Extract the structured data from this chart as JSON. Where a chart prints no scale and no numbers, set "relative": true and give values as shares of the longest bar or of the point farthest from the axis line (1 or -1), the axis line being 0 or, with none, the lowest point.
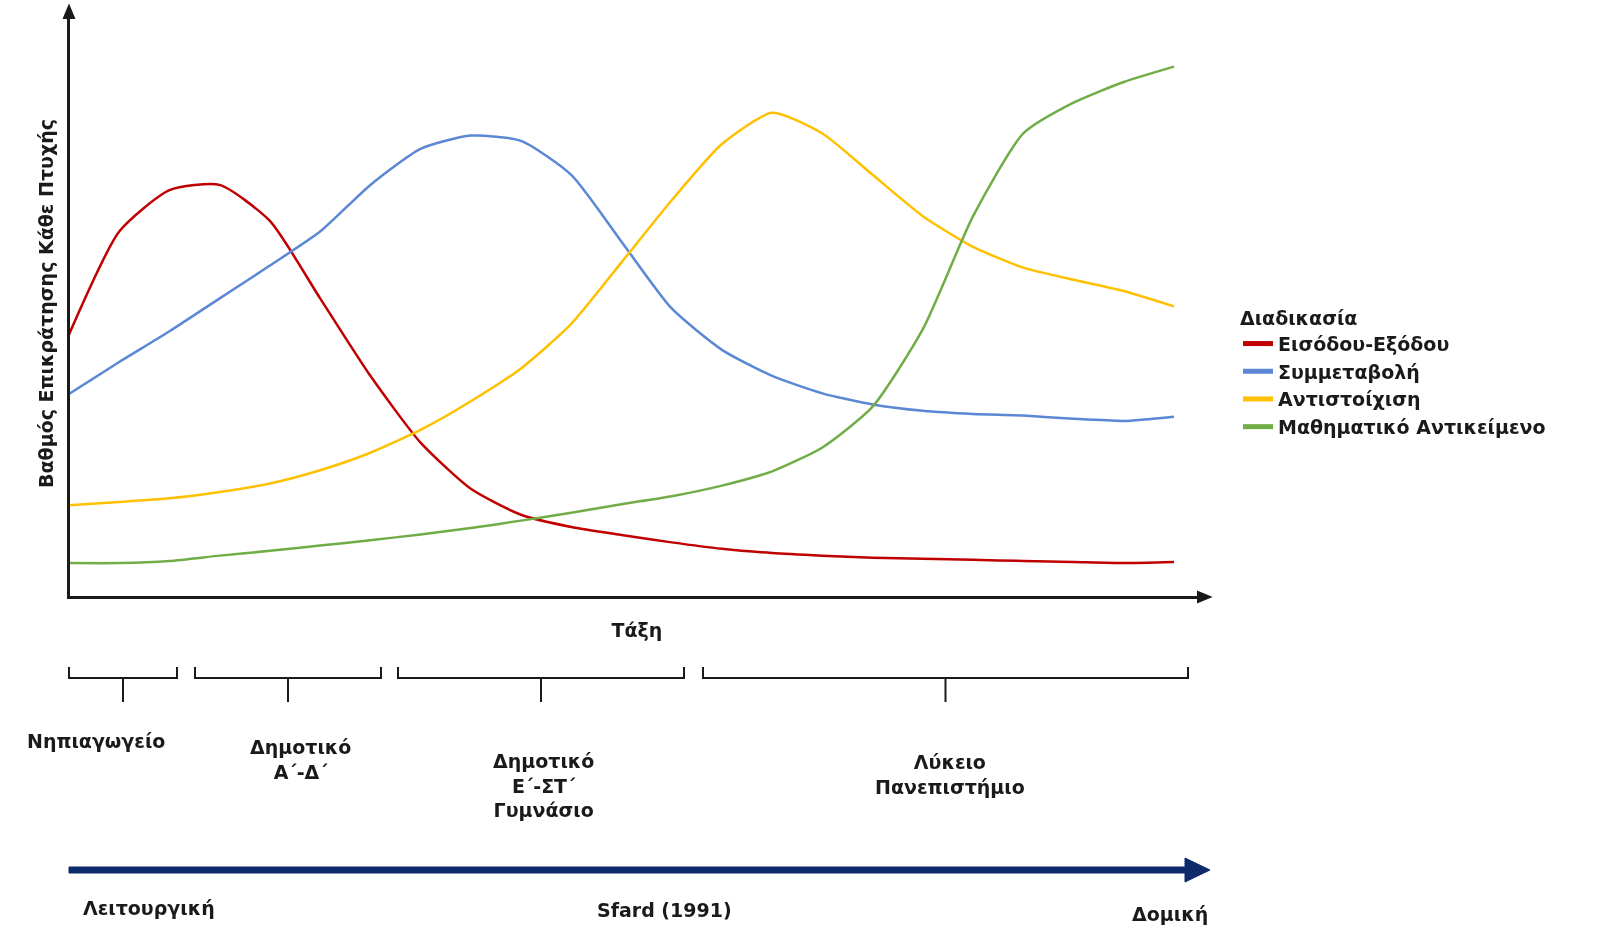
{
  "chart_data": {
    "type": "line",
    "relative": true,
    "xlabel": "Τάξη",
    "ylabel": "Βαθμός Επικράτησης Κάθε Πτυχής",
    "legend_title": "Διαδικασία",
    "legend": "right",
    "marker": "none",
    "line_style": "solid",
    "categories": [
      null,
      null,
      null,
      null,
      null,
      null,
      null,
      null,
      null,
      null,
      null,
      null,
      null,
      null,
      null,
      null,
      null,
      null,
      null,
      null,
      null,
      null,
      null
    ],
    "series": [
      {
        "name": "Εισόδου-Εξόδου",
        "color": "#c00000",
        "values": [
          0.495,
          0.689,
          0.767,
          0.777,
          0.709,
          0.563,
          0.417,
          0.291,
          0.204,
          0.155,
          0.132,
          0.117,
          0.103,
          0.091,
          0.083,
          0.078,
          0.074,
          0.072,
          0.07,
          0.068,
          0.066,
          0.064,
          0.066
        ]
      },
      {
        "name": "Συμμεταβολή",
        "color": "#5b87d4",
        "values": [
          0.383,
          0.443,
          0.501,
          0.563,
          0.625,
          0.689,
          0.777,
          0.845,
          0.87,
          0.86,
          0.796,
          0.67,
          0.544,
          0.466,
          0.417,
          0.384,
          0.363,
          0.351,
          0.345,
          0.342,
          0.336,
          0.332,
          0.34
        ]
      },
      {
        "name": "Αντιστοίχιση",
        "color": "#ffc000",
        "values": [
          0.173,
          0.179,
          0.186,
          0.198,
          0.214,
          0.239,
          0.272,
          0.315,
          0.369,
          0.431,
          0.515,
          0.631,
          0.748,
          0.854,
          0.913,
          0.874,
          0.796,
          0.718,
          0.66,
          0.621,
          0.598,
          0.577,
          0.548
        ]
      },
      {
        "name": "Μαθηματικό Αντικείμενο",
        "color": "#70ad47",
        "values": [
          0.064,
          0.064,
          0.068,
          0.078,
          0.087,
          0.097,
          0.107,
          0.118,
          0.13,
          0.144,
          0.159,
          0.175,
          0.19,
          0.21,
          0.237,
          0.282,
          0.359,
          0.505,
          0.718,
          0.874,
          0.932,
          0.971,
          1.0
        ]
      }
    ],
    "annotations": [
      "Νηπιαγωγείο",
      "Δημοτικό\nΑ΄-Δ΄",
      "Δημοτικό\nΕ΄-ΣΤ΄\nΓυμνάσιο",
      "Λύκειο\nΠανεπιστήμιο",
      "Λειτουργική",
      "Sfard (1991)",
      "Δομική"
    ]
  }
}
